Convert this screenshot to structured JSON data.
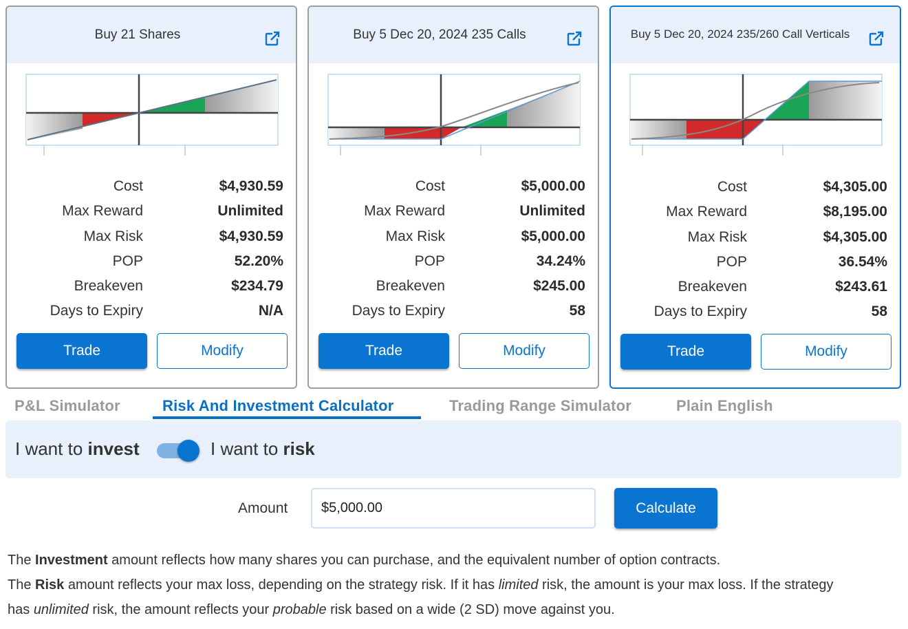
{
  "cards": [
    {
      "title": "Buy 21 Shares",
      "selected": false,
      "stats": [
        {
          "label": "Cost",
          "value": "$4,930.59"
        },
        {
          "label": "Max Reward",
          "value": "Unlimited"
        },
        {
          "label": "Max Risk",
          "value": "$4,930.59"
        },
        {
          "label": "POP",
          "value": "52.20%"
        },
        {
          "label": "Breakeven",
          "value": "$234.79"
        },
        {
          "label": "Days to Expiry",
          "value": "N/A"
        }
      ],
      "trade_label": "Trade",
      "modify_label": "Modify"
    },
    {
      "title": "Buy 5 Dec 20, 2024 235 Calls",
      "selected": false,
      "stats": [
        {
          "label": "Cost",
          "value": "$5,000.00"
        },
        {
          "label": "Max Reward",
          "value": "Unlimited"
        },
        {
          "label": "Max Risk",
          "value": "$5,000.00"
        },
        {
          "label": "POP",
          "value": "34.24%"
        },
        {
          "label": "Breakeven",
          "value": "$245.00"
        },
        {
          "label": "Days to Expiry",
          "value": "58"
        }
      ],
      "trade_label": "Trade",
      "modify_label": "Modify"
    },
    {
      "title": "Buy 5 Dec 20, 2024 235/260 Call Verticals",
      "selected": true,
      "stats": [
        {
          "label": "Cost",
          "value": "$4,305.00"
        },
        {
          "label": "Max Reward",
          "value": "$8,195.00"
        },
        {
          "label": "Max Risk",
          "value": "$4,305.00"
        },
        {
          "label": "POP",
          "value": "36.54%"
        },
        {
          "label": "Breakeven",
          "value": "$243.61"
        },
        {
          "label": "Days to Expiry",
          "value": "58"
        }
      ],
      "trade_label": "Trade",
      "modify_label": "Modify"
    }
  ],
  "tabs": [
    {
      "label": "P&L Simulator",
      "active": false
    },
    {
      "label": "Risk And Investment Calculator",
      "active": true
    },
    {
      "label": "Trading Range Simulator",
      "active": false
    },
    {
      "label": "Plain English",
      "active": false
    }
  ],
  "toggle": {
    "left_prefix": "I want to ",
    "left_bold": "invest",
    "right_prefix": "I want to ",
    "right_bold": "risk",
    "state": "risk"
  },
  "amount": {
    "label": "Amount",
    "value": "$5,000.00",
    "calculate_label": "Calculate"
  },
  "description": {
    "line1": {
      "a": "The ",
      "b": "Investment",
      "c": " amount reflects how many shares you can purchase, and the equivalent number of option contracts."
    },
    "line2": {
      "a": "The ",
      "b": "Risk",
      "c": " amount reflects your max loss, depending on the strategy risk. If it has ",
      "d": "limited",
      "e": " risk, the amount is your max loss. If the strategy"
    },
    "line3": {
      "a": "has ",
      "b": "unlimited",
      "c": " risk, the amount reflects your ",
      "d": "probable",
      "e": " risk based on a wide (2 SD) move against you."
    }
  },
  "colors": {
    "accent": "#0a74d1",
    "profit": "#1aa556",
    "loss": "#d22a2a",
    "header_bg": "#e8f0fb"
  },
  "icons": {
    "external": "external-link-icon"
  }
}
